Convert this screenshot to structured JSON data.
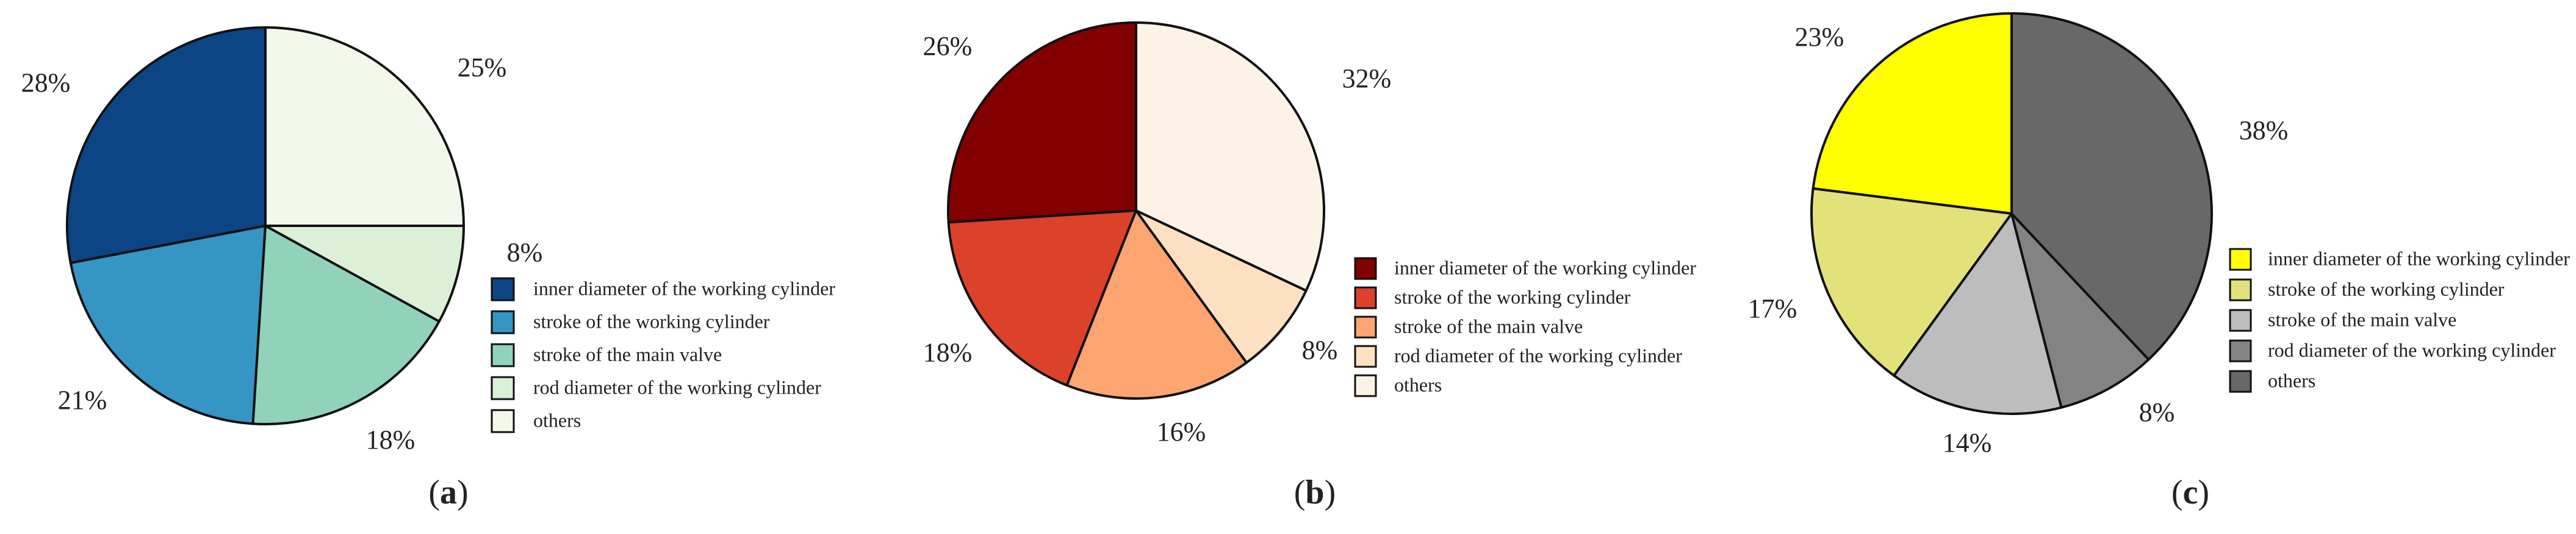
{
  "chart_data": [
    {
      "type": "pie",
      "panel_label_open": "(",
      "panel_label_letter": "a",
      "panel_label_close": ")",
      "slices": [
        {
          "label": "inner diameter of the working cylinder",
          "value": 28,
          "display": "28%",
          "color": "#0b4586"
        },
        {
          "label": "stroke of the working cylinder",
          "value": 21,
          "display": "21%",
          "color": "#3595c5"
        },
        {
          "label": "stroke of the main valve",
          "value": 18,
          "display": "18%",
          "color": "#91d3ba"
        },
        {
          "label": "rod diameter of the working cylinder",
          "value": 8,
          "display": "8%",
          "color": "#dcf0d8"
        },
        {
          "label": "others",
          "value": 25,
          "display": "25%",
          "color": "#f2f9ec"
        }
      ]
    },
    {
      "type": "pie",
      "panel_label_open": "(",
      "panel_label_letter": "b",
      "panel_label_close": ")",
      "slices": [
        {
          "label": "inner diameter of the working cylinder",
          "value": 26,
          "display": "26%",
          "color": "#820000"
        },
        {
          "label": "stroke of the working cylinder",
          "value": 18,
          "display": "18%",
          "color": "#dc412a"
        },
        {
          "label": "stroke of the main valve",
          "value": 16,
          "display": "16%",
          "color": "#fca571"
        },
        {
          "label": "rod diameter of the working cylinder",
          "value": 8,
          "display": "8%",
          "color": "#fde0c1"
        },
        {
          "label": "others",
          "value": 32,
          "display": "32%",
          "color": "#fdf2e6"
        }
      ]
    },
    {
      "type": "pie",
      "panel_label_open": "(",
      "panel_label_letter": "c",
      "panel_label_close": ")",
      "slices": [
        {
          "label": "inner diameter of the working cylinder",
          "value": 23,
          "display": "23%",
          "color": "#ffff00"
        },
        {
          "label": "stroke of the working cylinder",
          "value": 17,
          "display": "17%",
          "color": "#e3e27a"
        },
        {
          "label": "stroke of the main valve",
          "value": 14,
          "display": "14%",
          "color": "#bdbdbd"
        },
        {
          "label": "rod diameter of the working cylinder",
          "value": 8,
          "display": "8%",
          "color": "#838383"
        },
        {
          "label": "others",
          "value": 38,
          "display": "38%",
          "color": "#686868"
        }
      ]
    }
  ]
}
